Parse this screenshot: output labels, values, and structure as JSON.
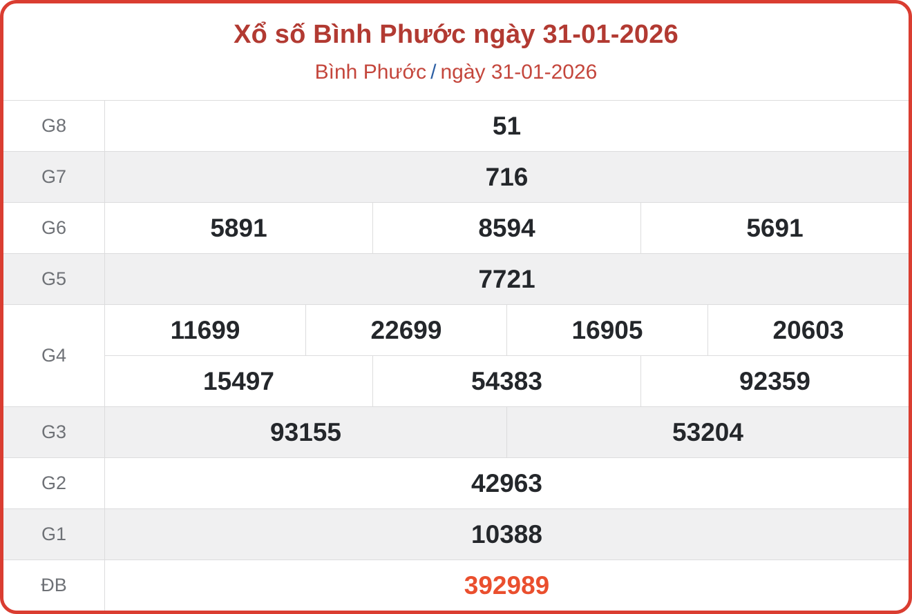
{
  "header": {
    "title": "Xổ số Bình Phước ngày 31-01-2026",
    "subtitle_region": "Bình Phước",
    "subtitle_separator": "/",
    "subtitle_date": "ngày 31-01-2026"
  },
  "colors": {
    "border_red": "#da3d31",
    "title_red": "#b23a32",
    "subtitle_red": "#c4463c",
    "separator_blue": "#2d5fa4",
    "special_prize_orange": "#ea4f2e",
    "label_gray": "#6e7176",
    "value_dark": "#24272b",
    "stripe_gray": "#f0f0f1"
  },
  "results": {
    "g8": {
      "label": "G8",
      "values": [
        "51"
      ]
    },
    "g7": {
      "label": "G7",
      "values": [
        "716"
      ]
    },
    "g6": {
      "label": "G6",
      "values": [
        "5891",
        "8594",
        "5691"
      ]
    },
    "g5": {
      "label": "G5",
      "values": [
        "7721"
      ]
    },
    "g4": {
      "label": "G4",
      "row1": [
        "11699",
        "22699",
        "16905",
        "20603"
      ],
      "row2": [
        "15497",
        "54383",
        "92359"
      ]
    },
    "g3": {
      "label": "G3",
      "values": [
        "93155",
        "53204"
      ]
    },
    "g2": {
      "label": "G2",
      "values": [
        "42963"
      ]
    },
    "g1": {
      "label": "G1",
      "values": [
        "10388"
      ]
    },
    "db": {
      "label": "ĐB",
      "values": [
        "392989"
      ]
    }
  }
}
